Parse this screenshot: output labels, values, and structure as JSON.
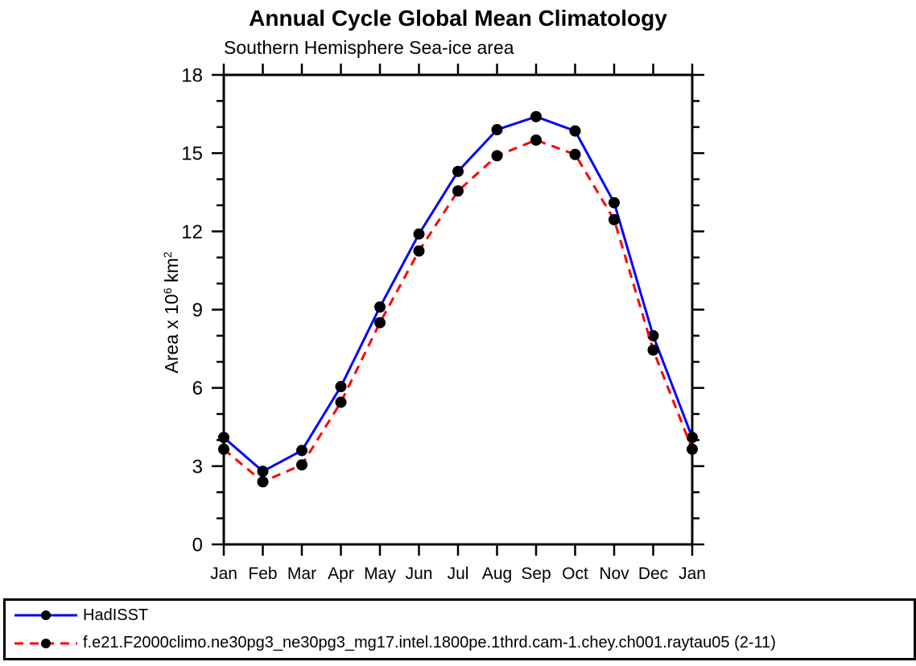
{
  "title": "Annual Cycle Global Mean Climatology",
  "subtitle": "Southern Hemisphere Sea-ice area",
  "chart_data": {
    "type": "line",
    "x_categories": [
      "Jan",
      "Feb",
      "Mar",
      "Apr",
      "May",
      "Jun",
      "Jul",
      "Aug",
      "Sep",
      "Oct",
      "Nov",
      "Dec",
      "Jan"
    ],
    "ylabel": "Area x 10^6 km^2",
    "ylabel_parts": [
      {
        "text": "Area x 10",
        "sup": false
      },
      {
        "text": "6",
        "sup": true
      },
      {
        "text": " km",
        "sup": false
      },
      {
        "text": "2",
        "sup": true
      }
    ],
    "ylim": [
      0,
      18
    ],
    "yticks_major": [
      0,
      3,
      6,
      9,
      12,
      15,
      18
    ],
    "ytick_minor_step": 1,
    "grid": false,
    "legend_position": "bottom-outside-framed",
    "axis_color": "#000000",
    "background_color": "#ffffff",
    "series": [
      {
        "name": "HadISST",
        "color": "#0000ff",
        "line_style": "solid",
        "marker": "filled-circle",
        "marker_color": "#000000",
        "values": [
          4.1,
          2.8,
          3.6,
          6.05,
          9.1,
          11.9,
          14.3,
          15.9,
          16.4,
          15.85,
          13.1,
          8.0,
          4.1
        ]
      },
      {
        "name": "f.e21.F2000climo.ne30pg3_ne30pg3_mg17.intel.1800pe.1thrd.cam-1.chey.ch001.raytau05 (2-11)",
        "color": "#ff0000",
        "line_style": "dashed",
        "marker": "filled-circle",
        "marker_color": "#000000",
        "values": [
          3.65,
          2.4,
          3.05,
          5.45,
          8.5,
          11.25,
          13.55,
          14.9,
          15.5,
          14.95,
          12.45,
          7.45,
          3.65
        ]
      }
    ]
  }
}
